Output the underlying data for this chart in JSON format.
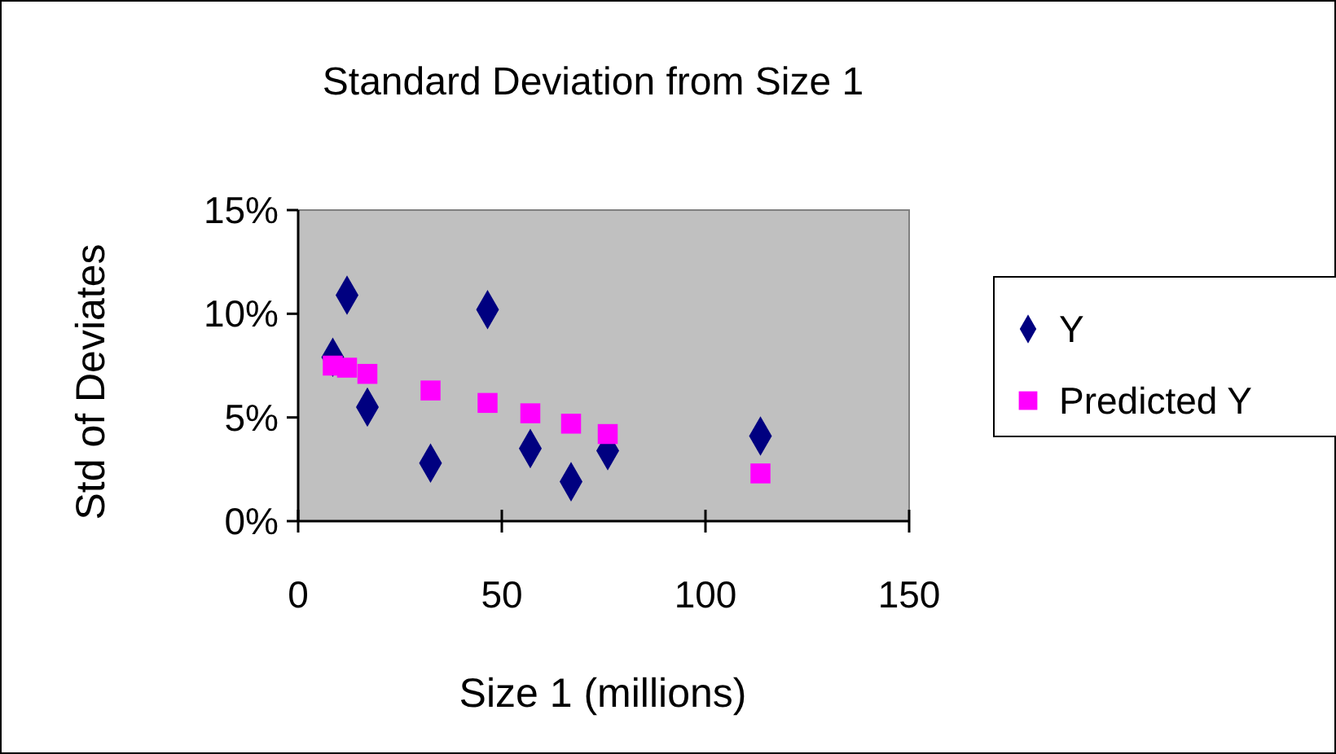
{
  "chart_data": {
    "type": "scatter",
    "title": "Standard Deviation from Size 1",
    "xlabel": "Size 1 (millions)",
    "ylabel": "Std of Deviates",
    "xlim": [
      0,
      150
    ],
    "xticks": [
      0,
      50,
      100,
      150
    ],
    "ylim": [
      0,
      0.15
    ],
    "yticks": [
      {
        "value": 0,
        "label": "0%"
      },
      {
        "value": 0.05,
        "label": "5%"
      },
      {
        "value": 0.1,
        "label": "10%"
      },
      {
        "value": 0.15,
        "label": "15%"
      }
    ],
    "legend": "right",
    "grid": false,
    "series": [
      {
        "name": "Y",
        "color": "#000080",
        "marker": "diamond",
        "x": [
          8.5,
          12,
          17,
          32.5,
          46.5,
          57,
          67,
          76,
          113.5
        ],
        "values": [
          0.079,
          0.109,
          0.055,
          0.028,
          0.102,
          0.035,
          0.019,
          0.034,
          0.041
        ]
      },
      {
        "name": "Predicted Y",
        "color": "#ff00ff",
        "marker": "square",
        "x": [
          8.5,
          12,
          17,
          32.5,
          46.5,
          57,
          67,
          76,
          113.5
        ],
        "values": [
          0.075,
          0.074,
          0.071,
          0.063,
          0.057,
          0.052,
          0.047,
          0.042,
          0.023
        ]
      }
    ]
  }
}
